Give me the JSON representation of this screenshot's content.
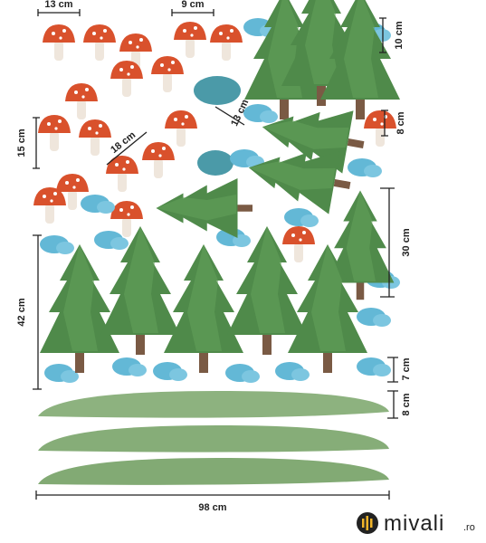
{
  "dimensions": [
    "13 cm",
    "9 cm",
    "10 cm",
    "8 cm",
    "15 cm",
    "18 cm",
    "13 cm",
    "30 cm",
    "42 cm",
    "7 cm",
    "8 cm",
    "98 cm"
  ],
  "logo": {
    "name": "mivali",
    "suffix": ".ro"
  }
}
